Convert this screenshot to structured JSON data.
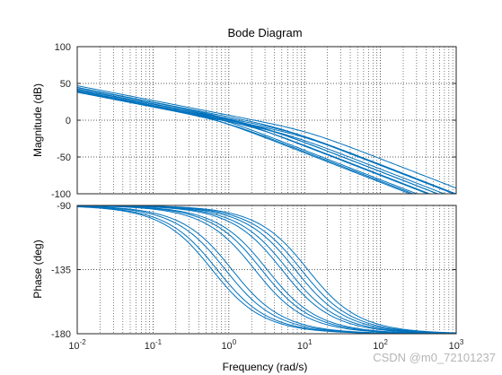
{
  "chart_data": {
    "type": "line",
    "title": "Bode Diagram",
    "xlabel": "Frequency  (rad/s)",
    "x_scale": "log",
    "xlim": [
      0.01,
      1000
    ],
    "x_ticks": [
      {
        "value": 0.01,
        "base": "10",
        "exp": "-2"
      },
      {
        "value": 0.1,
        "base": "10",
        "exp": "-1"
      },
      {
        "value": 1,
        "base": "10",
        "exp": "0"
      },
      {
        "value": 10,
        "base": "10",
        "exp": "1"
      },
      {
        "value": 100,
        "base": "10",
        "exp": "2"
      },
      {
        "value": 1000,
        "base": "10",
        "exp": "3"
      }
    ],
    "grid": true,
    "line_color": "#0072bd",
    "magnitude": {
      "ylabel": "Magnitude (dB)",
      "ylim": [
        -100,
        100
      ],
      "y_ticks": [
        "100",
        "50",
        "0",
        "-50",
        "-100"
      ]
    },
    "phase": {
      "ylabel": "Phase (deg)",
      "ylim": [
        -180,
        -90
      ],
      "y_ticks": [
        "-90",
        "-135",
        "-180"
      ]
    },
    "series": [
      {
        "k": 1.0,
        "p": 0.6
      },
      {
        "k": 1.3,
        "p": 0.7
      },
      {
        "k": 0.8,
        "p": 0.9
      },
      {
        "k": 1.6,
        "p": 1.1
      },
      {
        "k": 0.9,
        "p": 2.2
      },
      {
        "k": 1.2,
        "p": 2.7
      },
      {
        "k": 1.0,
        "p": 3.2
      },
      {
        "k": 1.7,
        "p": 5.0
      },
      {
        "k": 0.8,
        "p": 6.0
      },
      {
        "k": 1.3,
        "p": 7.5
      },
      {
        "k": 1.0,
        "p": 9.0
      },
      {
        "k": 2.2,
        "p": 11.0
      }
    ]
  },
  "watermark": "CSDN @m0_72101237"
}
